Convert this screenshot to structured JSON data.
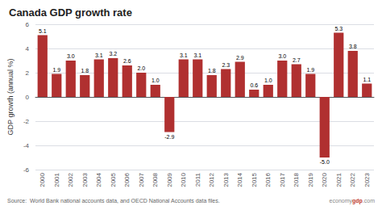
{
  "chart_data": {
    "type": "bar",
    "title": "Canada GDP growth rate",
    "ylabel": "GDP growth (annual %)",
    "categories": [
      "2000",
      "2001",
      "2002",
      "2003",
      "2004",
      "2005",
      "2006",
      "2007",
      "2008",
      "2009",
      "2010",
      "2011",
      "2012",
      "2013",
      "2014",
      "2015",
      "2016",
      "2017",
      "2018",
      "2019",
      "2020",
      "2021",
      "2022",
      "2023"
    ],
    "values": [
      5.1,
      1.9,
      3.0,
      1.8,
      3.1,
      3.2,
      2.6,
      2.0,
      1.0,
      -2.9,
      3.1,
      3.1,
      1.8,
      2.3,
      2.9,
      0.6,
      1.0,
      3.0,
      2.7,
      1.9,
      -5.0,
      5.3,
      3.8,
      1.1
    ],
    "value_labels": [
      "5.1",
      "1.9",
      "3.0",
      "1.8",
      "3.1",
      "3.2",
      "2.6",
      "2.0",
      "1.0",
      "-2.9",
      "3.1",
      "3.1",
      "1.8",
      "2.3",
      "2.9",
      "0.6",
      "1.0",
      "3.0",
      "2.7",
      "1.9",
      "-5.0",
      "5.3",
      "3.8",
      "1.1"
    ],
    "color": "#b03030",
    "ylim": [
      -6,
      6
    ],
    "yticks": [
      -6,
      -4,
      -2,
      0,
      2,
      4,
      6
    ],
    "grid": true,
    "data_labels": true,
    "annotations": [
      {
        "text": "Source:  World Bank national accounts data, and OECD National Accounts data files."
      },
      {
        "text": "economy",
        "color": "#888888"
      },
      {
        "text": "gdp",
        "color": "#c0392b"
      },
      {
        "text": ".com",
        "color": "#888888"
      }
    ]
  }
}
